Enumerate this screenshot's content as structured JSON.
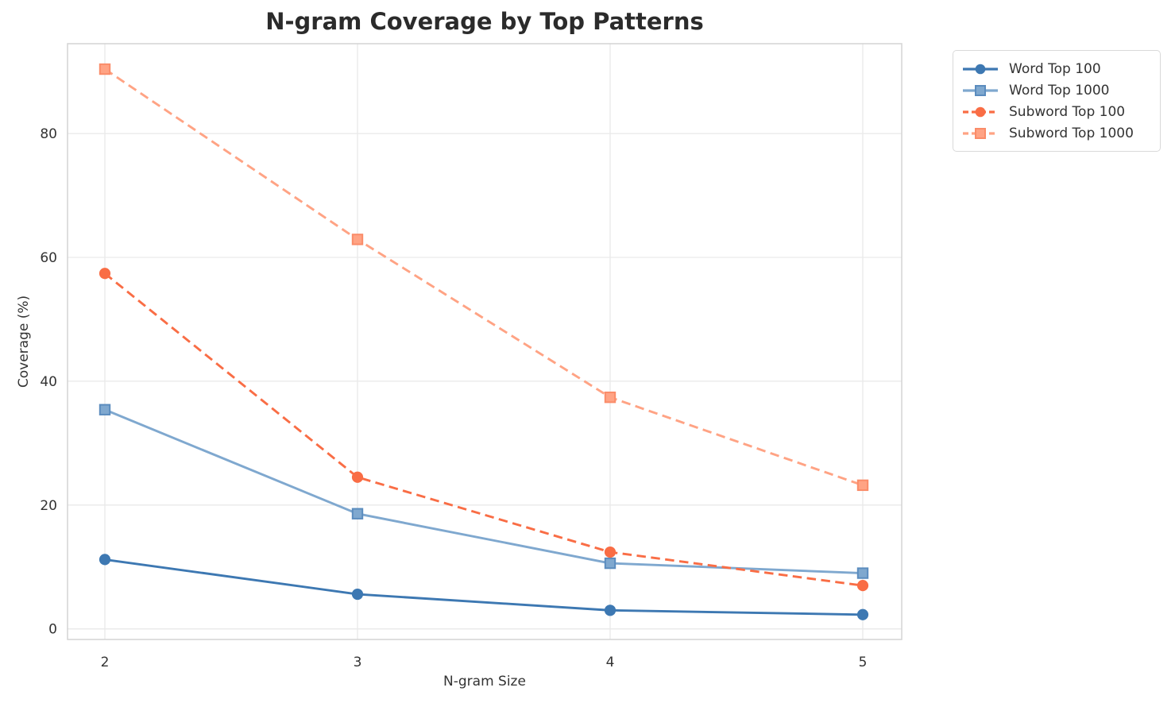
{
  "title": "N-gram Coverage by Top Patterns",
  "chart_data": {
    "type": "line",
    "x": [
      2,
      3,
      4,
      5
    ],
    "x_tick_labels": [
      "2",
      "3",
      "4",
      "5"
    ],
    "y_tick_values": [
      0,
      20,
      40,
      60,
      80
    ],
    "y_tick_labels": [
      "0",
      "20",
      "40",
      "60",
      "80"
    ],
    "xlabel": "N-gram Size",
    "ylabel": "Coverage (%)",
    "ylim": [
      -1.7,
      94.5
    ],
    "grid": true,
    "legend_position": "outside upper right",
    "series": [
      {
        "name": "Word Top 100",
        "values": [
          11.2,
          5.6,
          3.0,
          2.3
        ],
        "color": "#3d78b2",
        "marker": "circle",
        "marker_edge": "#3d78b2",
        "line_style": "solid"
      },
      {
        "name": "Word Top 1000",
        "values": [
          35.4,
          18.6,
          10.6,
          9.0
        ],
        "color": "#7fa8cf",
        "marker": "square",
        "marker_edge": "#5b8cbe",
        "line_style": "solid"
      },
      {
        "name": "Subword Top 100",
        "values": [
          57.4,
          24.5,
          12.4,
          7.0
        ],
        "color": "#f96d45",
        "marker": "circle",
        "marker_edge": "#f96d45",
        "line_style": "dashed"
      },
      {
        "name": "Subword Top 1000",
        "values": [
          90.4,
          62.9,
          37.4,
          23.2
        ],
        "color": "#ffa384",
        "marker": "square",
        "marker_edge": "#fa8c69",
        "line_style": "dashed"
      }
    ]
  },
  "colors": {
    "background": "#ffffff",
    "grid_line": "#e9e9e9",
    "spine": "#d4d4d4",
    "tick_text": "#333333",
    "title_text": "#2b2b2b"
  }
}
